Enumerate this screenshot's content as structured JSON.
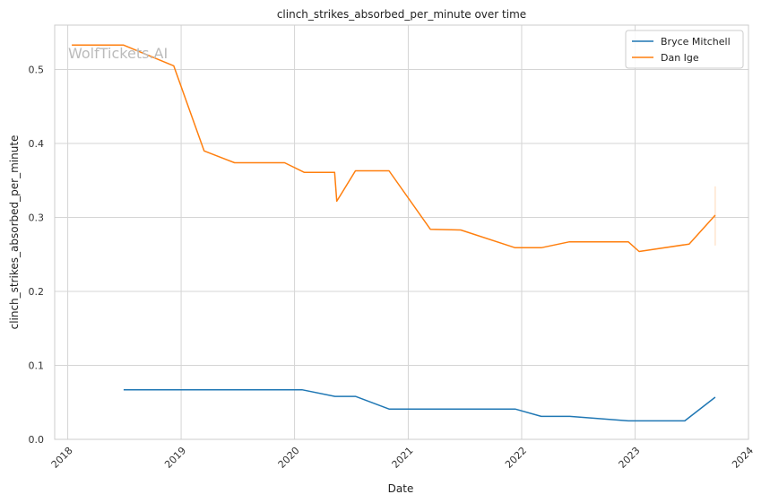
{
  "chart_data": {
    "type": "line",
    "title": "clinch_strikes_absorbed_per_minute over time",
    "xlabel": "Date",
    "ylabel": "clinch_strikes_absorbed_per_minute",
    "watermark": "WolfTickets.AI",
    "xlim": [
      "2017-11-20",
      "2024-01-01"
    ],
    "ylim": [
      0,
      0.56
    ],
    "x_ticks": [
      "2018",
      "2019",
      "2020",
      "2021",
      "2022",
      "2023",
      "2024"
    ],
    "x_tick_dates": [
      "2018-01-01",
      "2019-01-01",
      "2020-01-01",
      "2021-01-01",
      "2022-01-01",
      "2023-01-01",
      "2024-01-01"
    ],
    "y_ticks": [
      "0.0",
      "0.1",
      "0.2",
      "0.3",
      "0.4",
      "0.5"
    ],
    "y_tick_values": [
      0.0,
      0.1,
      0.2,
      0.3,
      0.4,
      0.5
    ],
    "grid": true,
    "legend_position": "top-right",
    "series": [
      {
        "name": "Bryce Mitchell",
        "color": "#1f77b4",
        "points": [
          [
            "2018-06-30",
            0.067
          ],
          [
            "2020-01-25",
            0.067
          ],
          [
            "2020-05-10",
            0.058
          ],
          [
            "2020-07-15",
            0.058
          ],
          [
            "2020-10-31",
            0.041
          ],
          [
            "2021-12-11",
            0.041
          ],
          [
            "2022-03-05",
            0.031
          ],
          [
            "2022-06-05",
            0.031
          ],
          [
            "2022-12-10",
            0.025
          ],
          [
            "2023-06-10",
            0.025
          ],
          [
            "2023-09-16",
            0.057
          ]
        ]
      },
      {
        "name": "Dan Ige",
        "color": "#ff7f0e",
        "points": [
          [
            "2018-01-14",
            0.533
          ],
          [
            "2018-06-30",
            0.533
          ],
          [
            "2018-12-08",
            0.505
          ],
          [
            "2019-03-16",
            0.39
          ],
          [
            "2019-06-22",
            0.374
          ],
          [
            "2019-11-30",
            0.374
          ],
          [
            "2020-02-01",
            0.361
          ],
          [
            "2020-05-09",
            0.361
          ],
          [
            "2020-05-16",
            0.322
          ],
          [
            "2020-07-15",
            0.363
          ],
          [
            "2020-10-31",
            0.363
          ],
          [
            "2021-03-13",
            0.284
          ],
          [
            "2021-06-19",
            0.283
          ],
          [
            "2021-12-11",
            0.259
          ],
          [
            "2022-03-05",
            0.259
          ],
          [
            "2022-06-04",
            0.267
          ],
          [
            "2022-12-10",
            0.267
          ],
          [
            "2023-01-14",
            0.254
          ],
          [
            "2023-06-24",
            0.264
          ],
          [
            "2023-09-16",
            0.303
          ]
        ],
        "error_bar": {
          "date": "2023-09-16",
          "low": 0.262,
          "high": 0.342
        }
      }
    ]
  }
}
